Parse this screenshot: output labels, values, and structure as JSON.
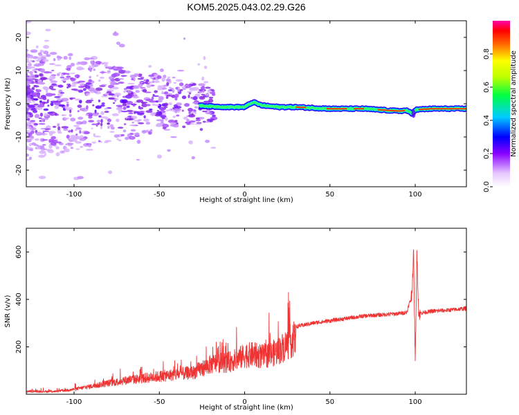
{
  "title": "KOM5.2025.043.02.29.G26",
  "chart_data": [
    {
      "type": "heatmap",
      "xlabel": "Height of straight line (km)",
      "ylabel": "Frequency (Hz)",
      "xlim": [
        -128,
        130
      ],
      "ylim": [
        -25,
        25
      ],
      "xticks": [
        -100,
        -50,
        0,
        50,
        100
      ],
      "yticks": [
        -20,
        -10,
        0,
        10,
        20
      ],
      "colorbar": {
        "label": "Normalized spectral amplitude",
        "ticks": [
          0.0,
          0.2,
          0.4,
          0.6,
          0.8
        ],
        "range": [
          0,
          1
        ]
      },
      "ridge": {
        "x": [
          -27,
          -20,
          -10,
          0,
          5,
          10,
          20,
          30,
          50,
          70,
          90,
          95,
          98,
          100,
          110,
          130
        ],
        "y": [
          -0.5,
          -0.8,
          -1.0,
          -1.0,
          0.5,
          -0.5,
          -1.0,
          -1.0,
          -1.5,
          -1.5,
          -2.2,
          -2.0,
          -3.0,
          -1.8,
          -1.5,
          -1.5
        ]
      },
      "grid": false
    },
    {
      "type": "line",
      "xlabel": "Height of straight line (km)",
      "ylabel": "SNR (v/v)",
      "xlim": [
        -128,
        130
      ],
      "ylim": [
        0,
        700
      ],
      "xticks": [
        -100,
        -50,
        0,
        50,
        100
      ],
      "yticks": [
        200,
        400,
        600
      ],
      "color": "#ef3333",
      "series": [
        {
          "x": [
            -128,
            -110,
            -100,
            -90,
            -80,
            -70,
            -60,
            -50,
            -40,
            -30,
            -25,
            -20,
            -15,
            -10,
            -5,
            0,
            5,
            10,
            15,
            20,
            25,
            30,
            40,
            50,
            60,
            70,
            80,
            90,
            95,
            98,
            99,
            100,
            101,
            102,
            105,
            110,
            120,
            130
          ],
          "values": [
            15,
            15,
            25,
            40,
            55,
            70,
            80,
            90,
            100,
            110,
            130,
            150,
            160,
            160,
            175,
            195,
            200,
            190,
            200,
            220,
            255,
            285,
            300,
            310,
            320,
            330,
            335,
            340,
            345,
            420,
            600,
            120,
            600,
            340,
            345,
            350,
            355,
            362
          ]
        }
      ],
      "grid": false
    }
  ]
}
